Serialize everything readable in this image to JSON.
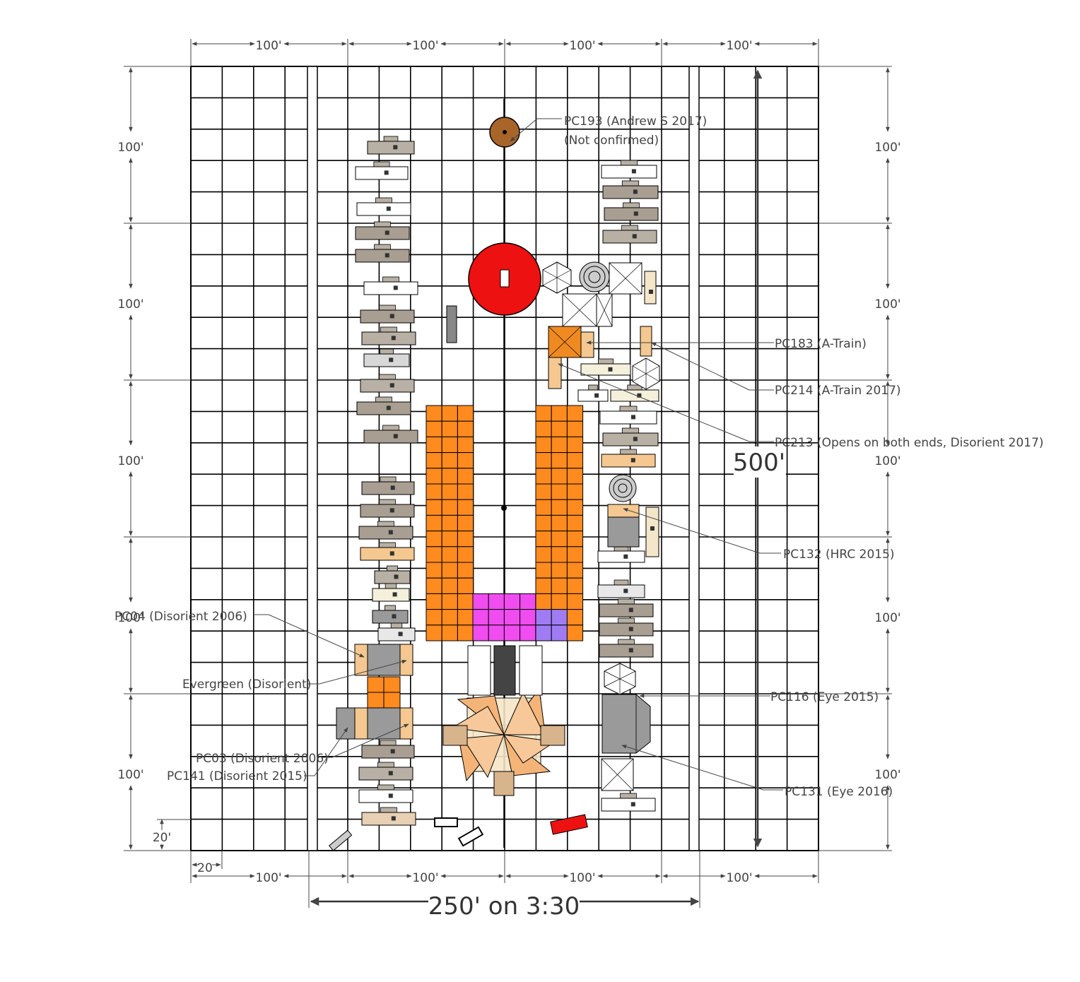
{
  "dimensions": {
    "top_segments": [
      "100'",
      "100'",
      "100'",
      "100'"
    ],
    "bottom_segments": [
      "100'",
      "100'",
      "100'",
      "100'"
    ],
    "left_segments": [
      "100'",
      "100'",
      "100'",
      "100'",
      "100'"
    ],
    "right_segments": [
      "100'",
      "100'",
      "100'",
      "100'",
      "100'"
    ],
    "grid_cell_v": "20'",
    "grid_cell_h": "20",
    "total_height": "500'",
    "frontage": "250' on 3:30"
  },
  "labels": {
    "pc193_line1": "PC193 (Andrew S 2017)",
    "pc193_line2": "(Not confirmed)",
    "pc183": "PC183 (A-Train)",
    "pc214": "PC214 (A-Train 2017)",
    "pc213": "PC213 (Opens on both ends, Disorient 2017)",
    "pc132": "PC132 (HRC 2015)",
    "pc04": "PC04 (Disorient 2006)",
    "evergreen": "Evergreen (Disorient)",
    "pc116": "PC116 (Eye 2015)",
    "pc03": "PC03 (Disorient 2006)",
    "pc141": "PC141 (Disorient 2015)",
    "pc131": "PC131 (Eye 2016)"
  },
  "colors": {
    "orange": "#ff8a1e",
    "magenta": "#f04cf0",
    "violet": "#a07cf4",
    "red_dome": "#ee1111",
    "tan": "#f4c890",
    "grey": "#9a9a9a",
    "brown": "#a8652a"
  }
}
